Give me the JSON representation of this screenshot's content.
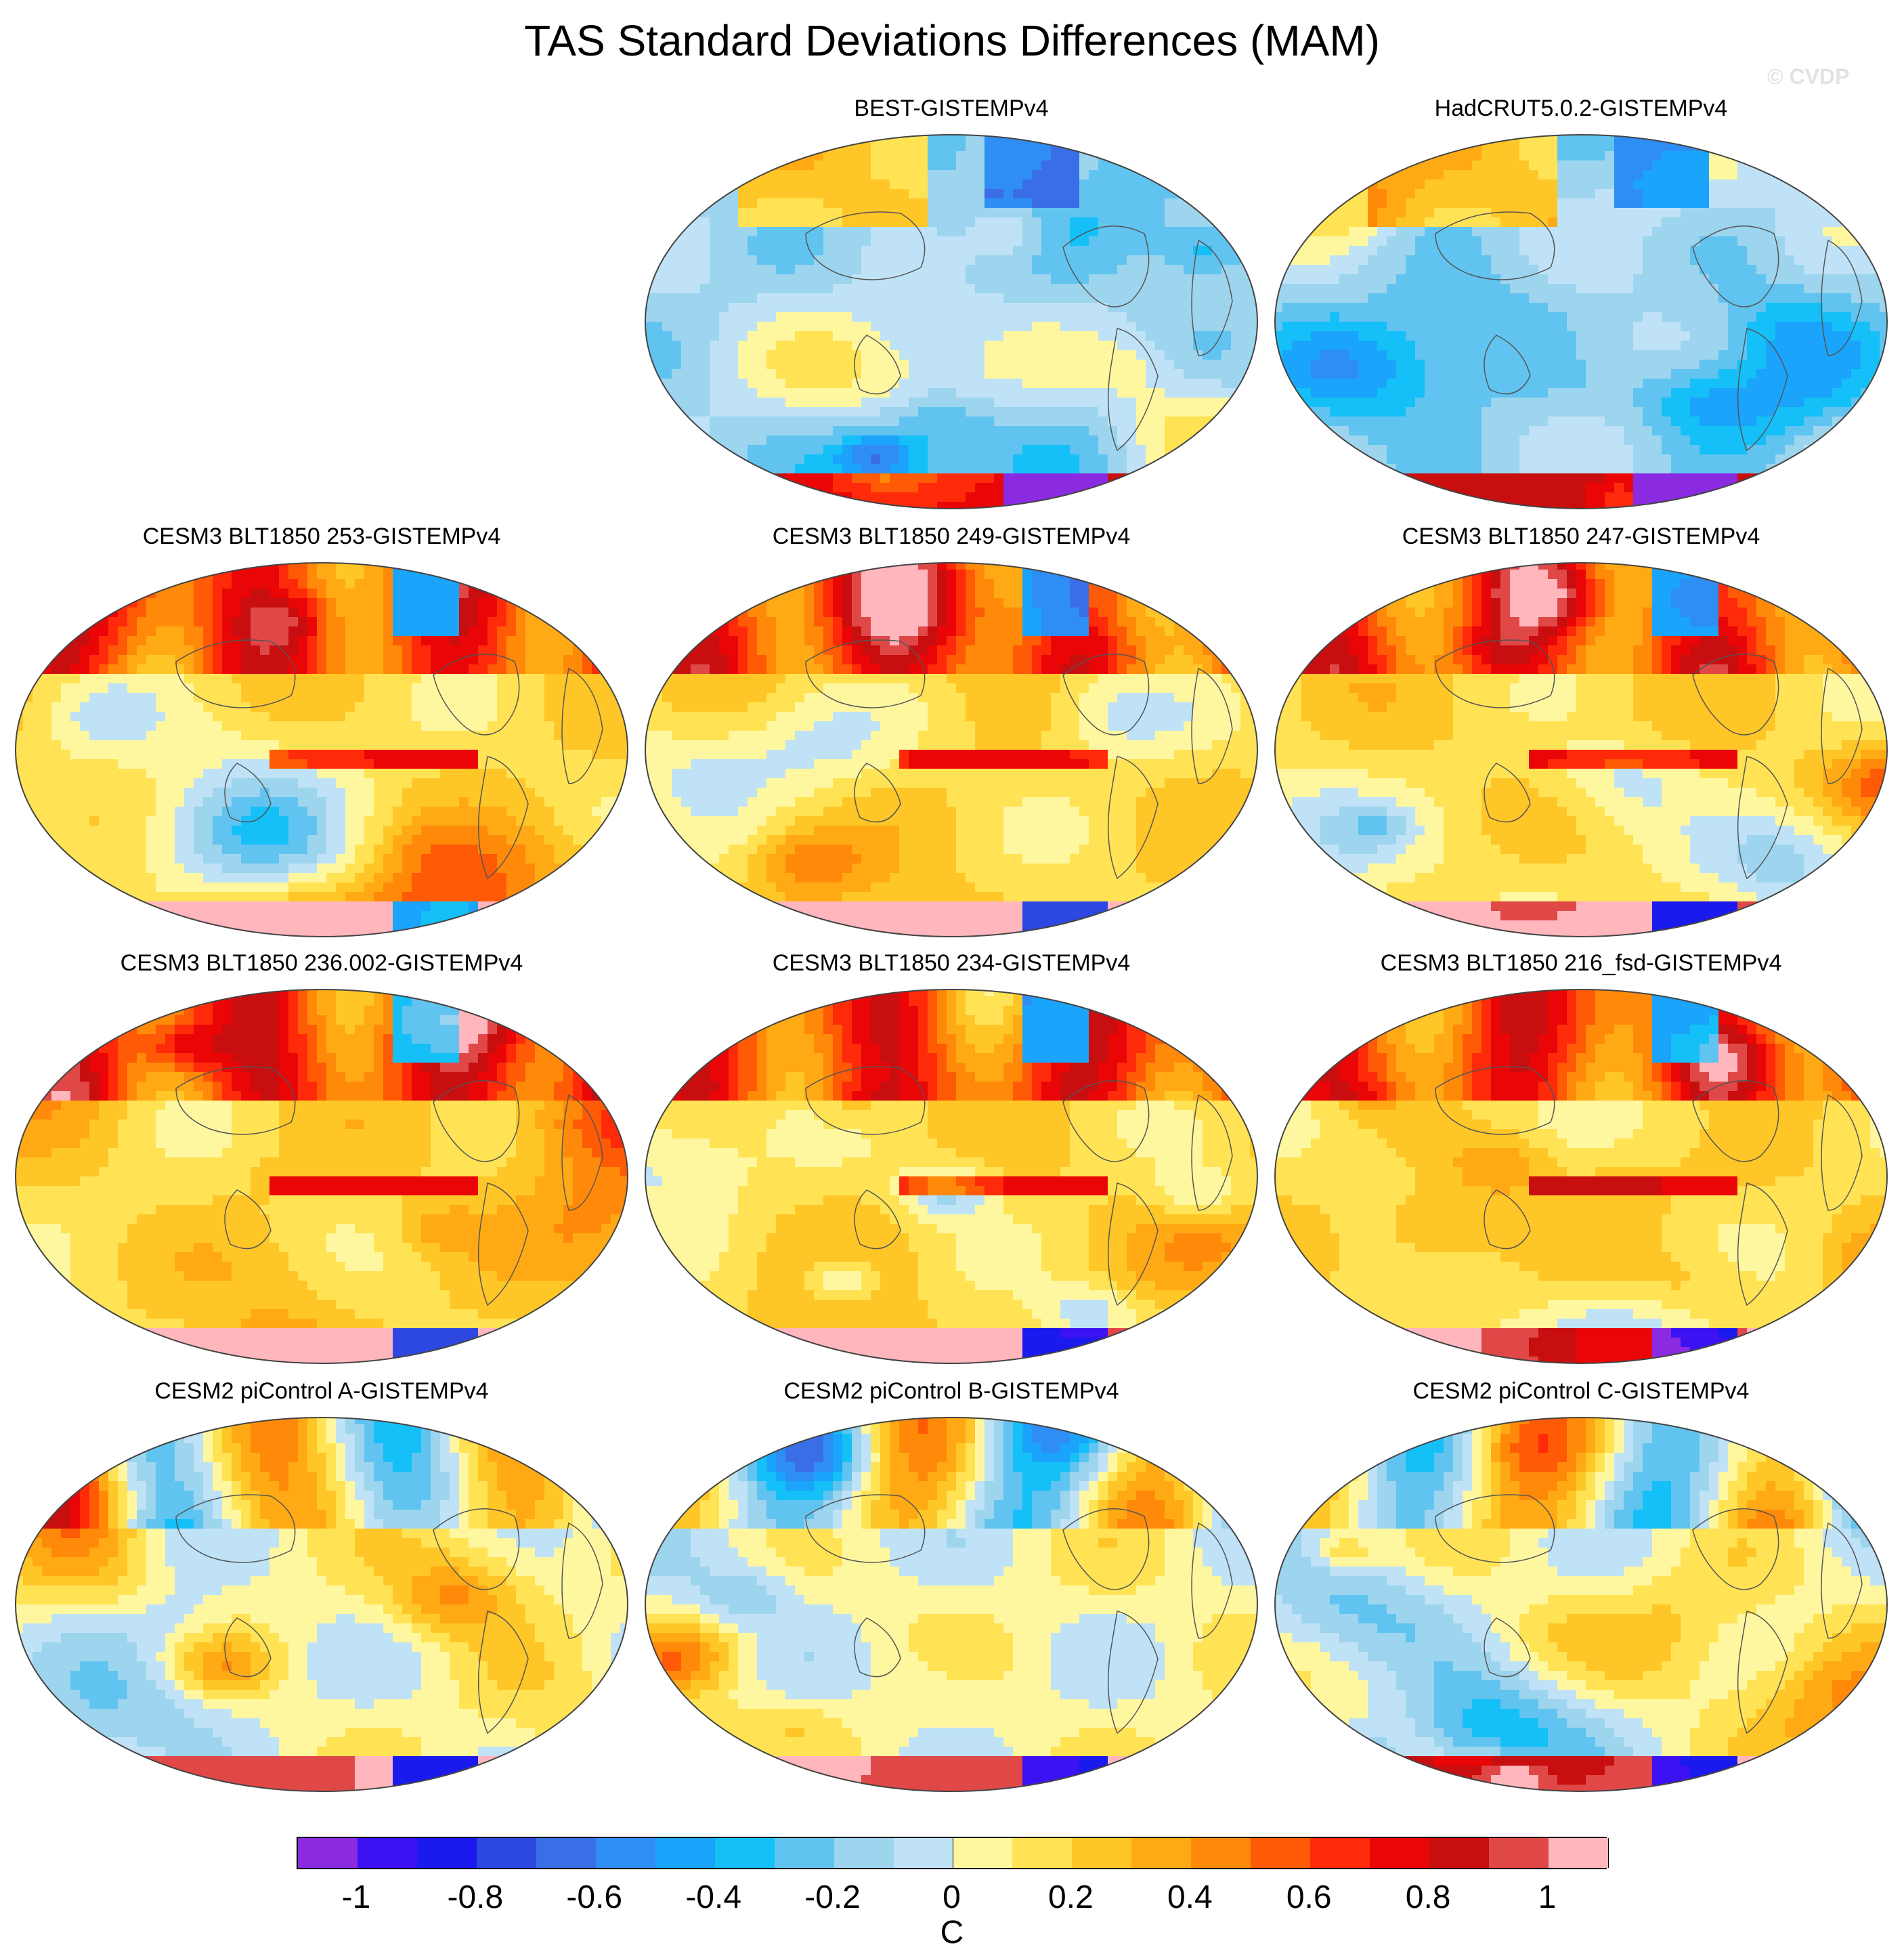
{
  "title": "TAS Standard Deviations Differences (MAM)",
  "watermark": "© CVDP",
  "panels": [
    {
      "label": "BEST-GISTEMPv4",
      "pattern": "obs",
      "seed": 11
    },
    {
      "label": "HadCRUT5.0.2-GISTEMPv4",
      "pattern": "obs",
      "seed": 23
    },
    {
      "label": "CESM3 BLT1850 253-GISTEMPv4",
      "pattern": "model_warm",
      "seed": 37
    },
    {
      "label": "CESM3 BLT1850 249-GISTEMPv4",
      "pattern": "model_warm",
      "seed": 41
    },
    {
      "label": "CESM3 BLT1850 247-GISTEMPv4",
      "pattern": "model_warm",
      "seed": 53
    },
    {
      "label": "CESM3 BLT1850 236.002-GISTEMPv4",
      "pattern": "model_warm",
      "seed": 61
    },
    {
      "label": "CESM3 BLT1850 234-GISTEMPv4",
      "pattern": "model_warm",
      "seed": 67
    },
    {
      "label": "CESM3 BLT1850 216_fsd-GISTEMPv4",
      "pattern": "model_warm",
      "seed": 71
    },
    {
      "label": "CESM2 piControl A-GISTEMPv4",
      "pattern": "model_mixed",
      "seed": 79
    },
    {
      "label": "CESM2 piControl B-GISTEMPv4",
      "pattern": "model_mixed",
      "seed": 83
    },
    {
      "label": "CESM2 piControl C-GISTEMPv4",
      "pattern": "model_mixed",
      "seed": 89
    }
  ],
  "colorbar": {
    "levels": [
      -1,
      -0.9,
      -0.8,
      -0.7,
      -0.6,
      -0.5,
      -0.4,
      -0.3,
      -0.2,
      -0.1,
      0,
      0.1,
      0.2,
      0.3,
      0.4,
      0.5,
      0.6,
      0.7,
      0.8,
      0.9,
      1
    ],
    "colors": [
      "#8a2be2",
      "#3c12f2",
      "#1a1aee",
      "#2d48e0",
      "#3a6ee6",
      "#2f8ef4",
      "#1aa4fb",
      "#14c0f7",
      "#61c4f0",
      "#9dd4ee",
      "#bfe2f6",
      "#fff7a0",
      "#ffe355",
      "#ffc628",
      "#ffaa14",
      "#ff8a0a",
      "#ff5a05",
      "#ff2a0a",
      "#ea0606",
      "#c80e0e",
      "#e04848",
      "#ffb6bc"
    ],
    "tick_values": [
      -1,
      -0.8,
      -0.6,
      -0.4,
      -0.2,
      0,
      0.2,
      0.4,
      0.6,
      0.8,
      1
    ],
    "tick_labels": [
      "-1",
      "-0.8",
      "-0.6",
      "-0.4",
      "-0.2",
      "0",
      "0.2",
      "0.4",
      "0.6",
      "0.8",
      "1"
    ],
    "unit": "C"
  }
}
